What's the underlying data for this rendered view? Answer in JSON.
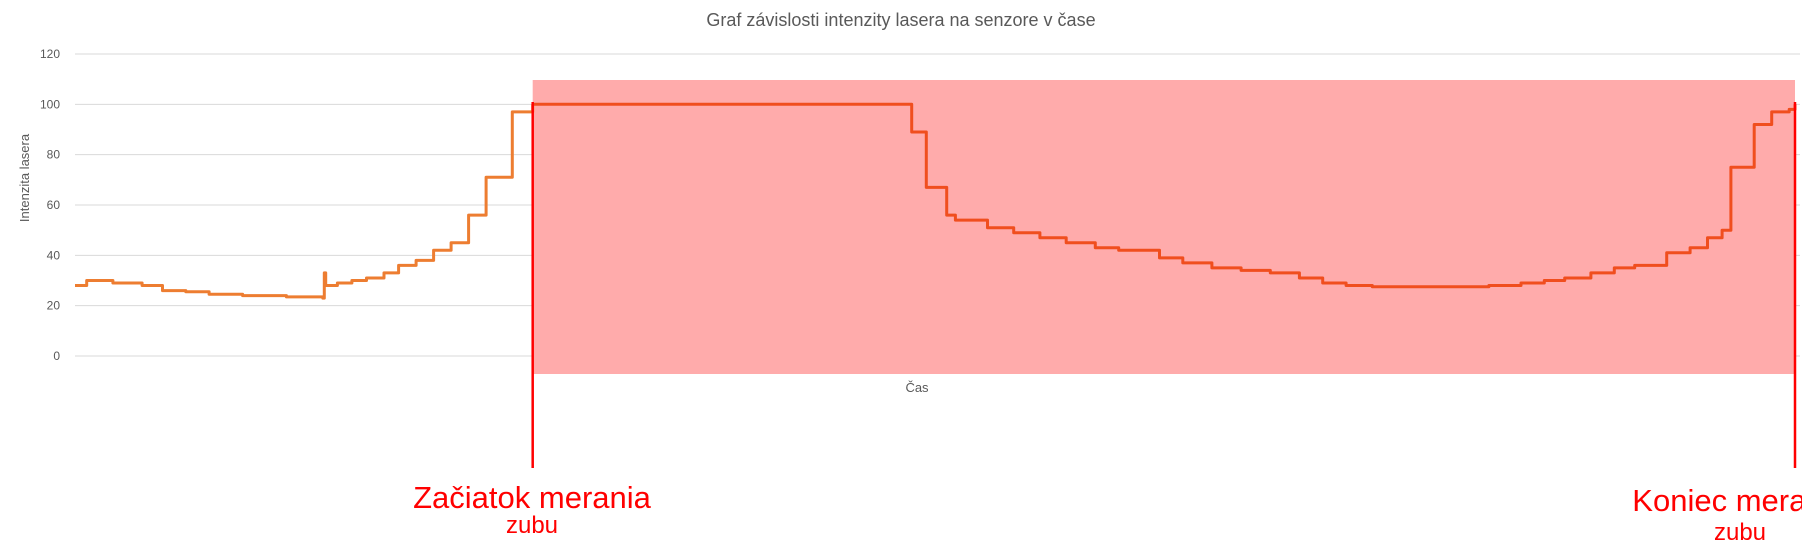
{
  "chart_data": {
    "type": "line",
    "title": "Graf závislosti intenzity lasera na senzore v čase",
    "xlabel": "Čas",
    "ylabel": "Intenzita lasera",
    "ylim": [
      0,
      120
    ],
    "yticks": [
      "0",
      "20",
      "40",
      "60",
      "80",
      "100",
      "120"
    ],
    "grid": true,
    "legend": "none",
    "colors": {
      "series_before": "#ed7d31",
      "series_during": "#f04e1e",
      "highlight_fill": "#ffabab",
      "marker_line": "#ff0000",
      "annotation_text": "#ff0000"
    },
    "series": [
      {
        "values": [
          [
            0,
            28
          ],
          [
            8,
            30
          ],
          [
            26,
            29
          ],
          [
            46,
            28
          ],
          [
            60,
            26
          ],
          [
            76,
            25.5
          ],
          [
            92,
            24.5
          ],
          [
            115,
            24
          ],
          [
            145,
            23.5
          ],
          [
            170,
            23
          ],
          [
            171,
            33
          ],
          [
            172,
            28
          ],
          [
            180,
            29
          ],
          [
            190,
            30
          ],
          [
            200,
            31
          ],
          [
            212,
            33
          ],
          [
            222,
            36
          ],
          [
            234,
            38
          ],
          [
            246,
            42
          ],
          [
            258,
            45
          ],
          [
            270,
            56
          ],
          [
            282,
            71
          ],
          [
            300,
            97
          ],
          [
            314,
            100
          ],
          [
            430,
            100
          ],
          [
            560,
            100
          ],
          [
            574,
            89
          ],
          [
            584,
            67
          ],
          [
            598,
            56
          ],
          [
            604,
            54
          ],
          [
            626,
            51
          ],
          [
            644,
            49
          ],
          [
            662,
            47
          ],
          [
            680,
            45
          ],
          [
            700,
            43
          ],
          [
            716,
            42
          ],
          [
            744,
            39
          ],
          [
            760,
            37
          ],
          [
            780,
            35
          ],
          [
            800,
            34
          ],
          [
            820,
            33
          ],
          [
            840,
            31
          ],
          [
            856,
            29
          ],
          [
            872,
            28
          ],
          [
            890,
            27.5
          ],
          [
            930,
            27.5
          ],
          [
            970,
            28
          ],
          [
            992,
            29
          ],
          [
            1008,
            30
          ],
          [
            1022,
            31
          ],
          [
            1040,
            33
          ],
          [
            1056,
            35
          ],
          [
            1070,
            36
          ],
          [
            1092,
            41
          ],
          [
            1108,
            43
          ],
          [
            1120,
            47
          ],
          [
            1130,
            50
          ],
          [
            1136,
            75
          ],
          [
            1152,
            92
          ],
          [
            1164,
            97
          ],
          [
            1176,
            98
          ],
          [
            1180,
            100
          ]
        ]
      }
    ],
    "highlight_region": {
      "x_start": 314,
      "x_end": 1180
    },
    "annotations": [
      {
        "x": 314,
        "line1": "Začiatok merania",
        "line2": "zubu"
      },
      {
        "x": 1180,
        "line1": "Koniec merania",
        "line2": "zubu"
      }
    ]
  }
}
